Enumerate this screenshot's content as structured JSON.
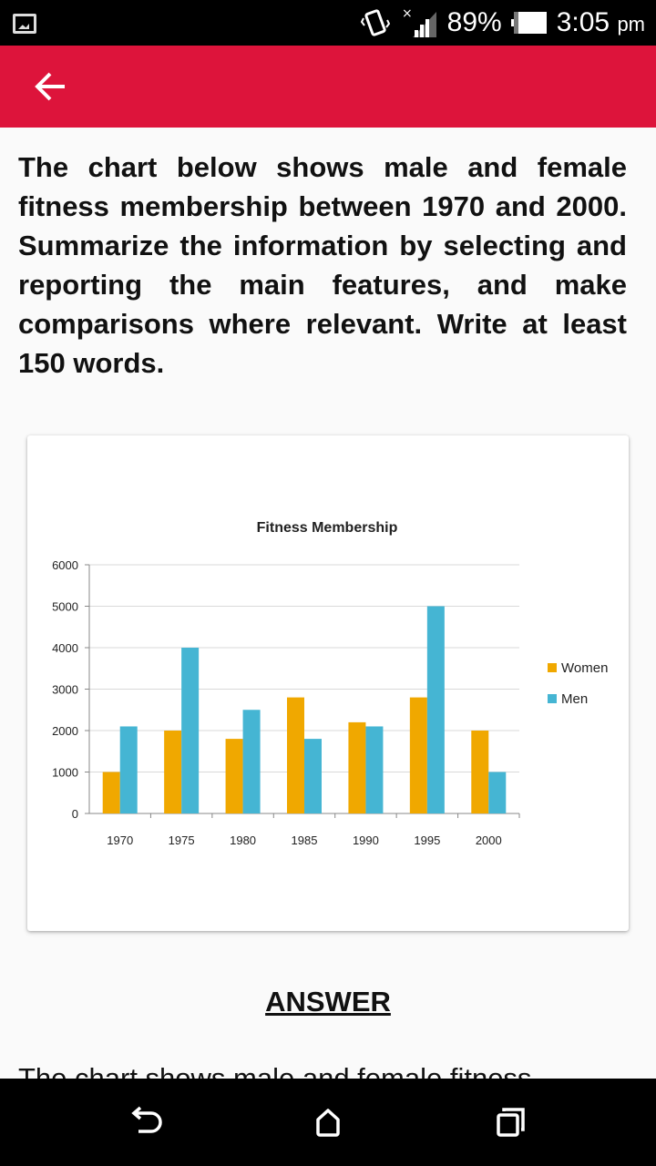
{
  "status_bar": {
    "battery_percent": "89%",
    "time": "3:05",
    "ampm": "pm"
  },
  "app_bar": {
    "back_icon": "arrow-left-icon"
  },
  "question": {
    "text": "The chart below shows male and female fitness membership between 1970 and 2000. Summarize the information by selecting and reporting the main features, and make comparisons where relevant. Write at least 150 words."
  },
  "answer": {
    "heading": "ANSWER",
    "text_preview": "The chart shows male and female fitness"
  },
  "chart_data": {
    "type": "bar",
    "title": "Fitness Membership",
    "categories": [
      "1970",
      "1975",
      "1980",
      "1985",
      "1990",
      "1995",
      "2000"
    ],
    "series": [
      {
        "name": "Women",
        "values": [
          1000,
          2000,
          1800,
          2800,
          2200,
          2800,
          2000
        ],
        "color": "#f0a800"
      },
      {
        "name": "Men",
        "values": [
          2100,
          4000,
          2500,
          1800,
          2100,
          5000,
          1000
        ],
        "color": "#45b5d3"
      }
    ],
    "yticks": [
      "0",
      "1000",
      "2000",
      "3000",
      "4000",
      "5000",
      "6000"
    ],
    "ylim": [
      0,
      6000
    ],
    "grid": true,
    "legend_position": "right"
  },
  "nav_bar": {
    "back_icon": "nav-back-icon",
    "home_icon": "nav-home-icon",
    "recents_icon": "nav-recents-icon"
  }
}
